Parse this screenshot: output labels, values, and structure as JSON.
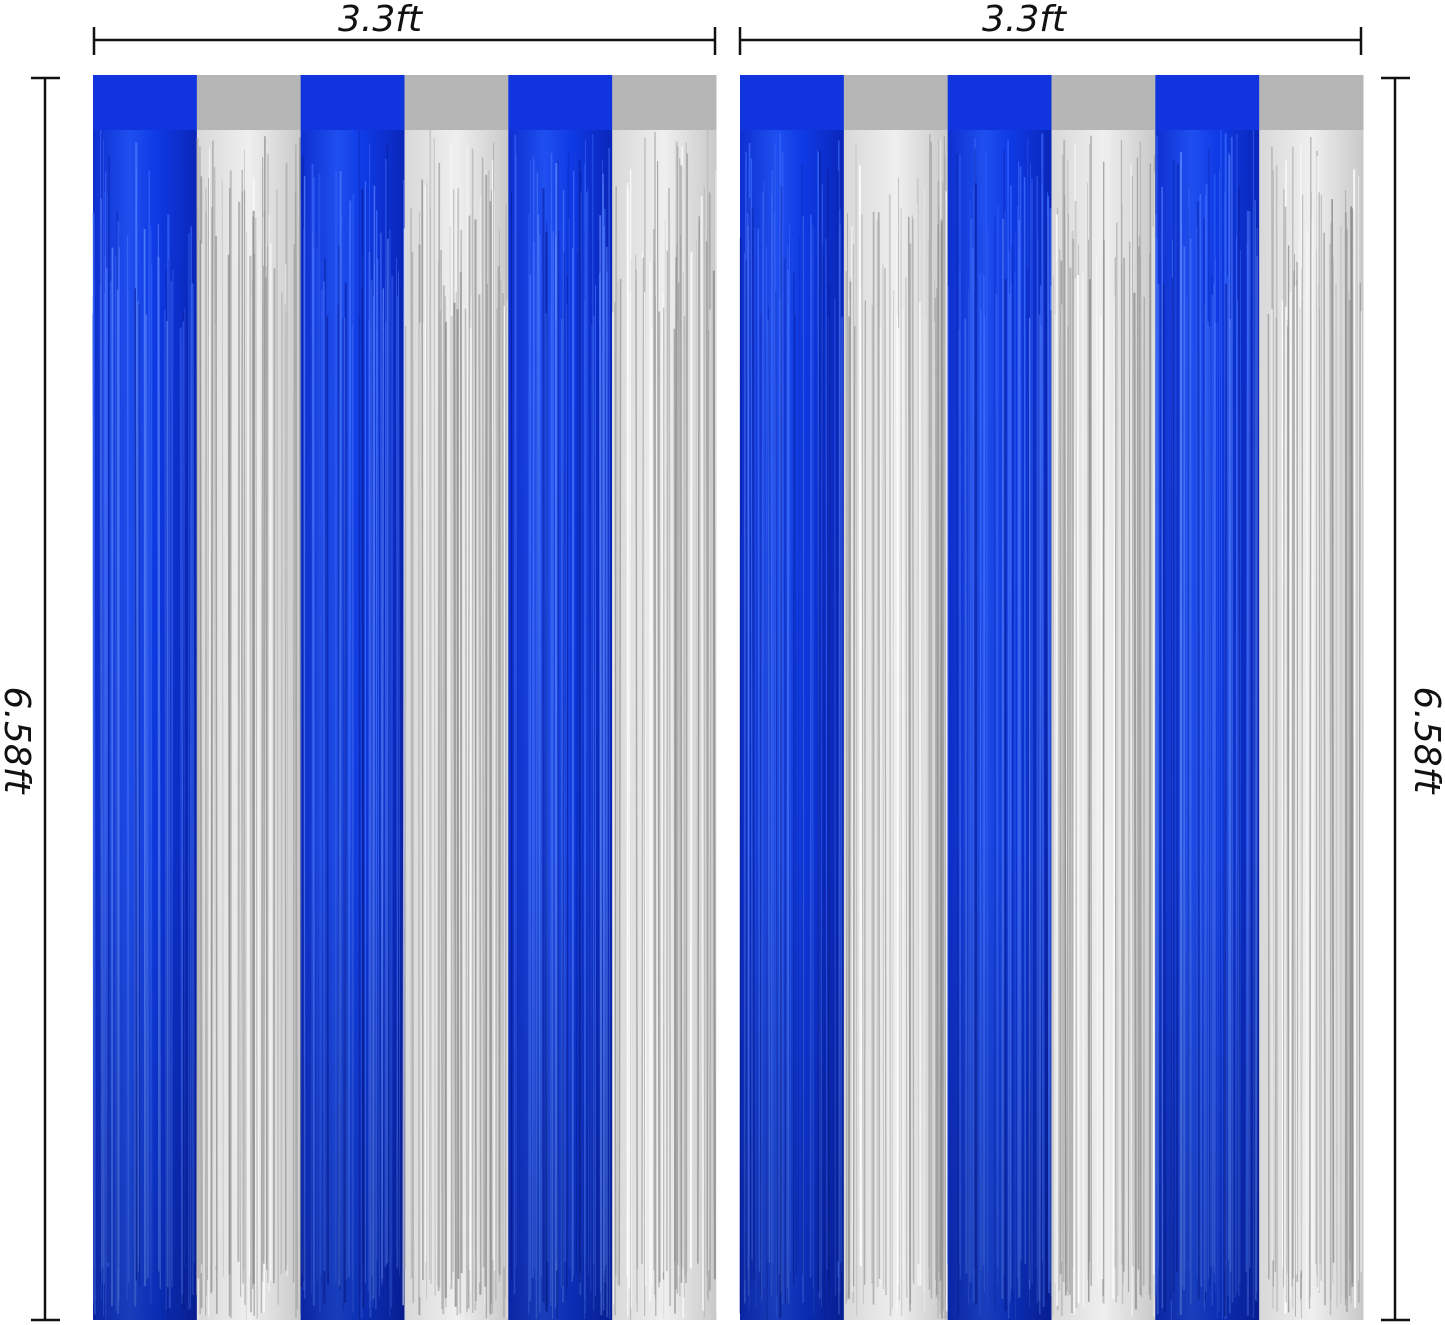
{
  "dimensions": {
    "curtains": [
      {
        "width_label": "3.3ft",
        "height_label": "6.58ft"
      },
      {
        "width_label": "3.3ft",
        "height_label": "6.58ft"
      }
    ]
  }
}
